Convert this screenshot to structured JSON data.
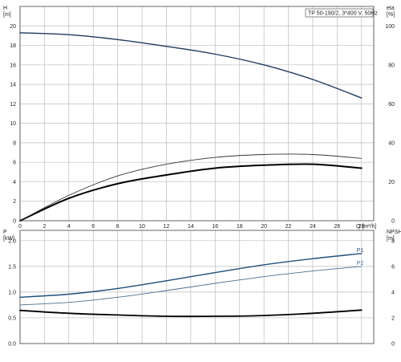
{
  "colors": {
    "grid": "#bdbdbd",
    "frame": "#555555",
    "head": "#1f3b5e",
    "eta": "#000000",
    "eta2": "#333333",
    "p1": "#1f4f7a",
    "p2": "#4a6f90",
    "npsh": "#000000"
  },
  "chart_data": [
    {
      "type": "line",
      "title": "TP 50-190/2, 3*400 V, 50Hz",
      "xlabel": "Q [m³/h]",
      "ylabel_left": [
        "H",
        "[m]"
      ],
      "ylabel_right": [
        "eta",
        "[%]"
      ],
      "xlim": [
        0,
        29
      ],
      "ylim_left": [
        0,
        22
      ],
      "ylim_right": [
        0,
        110
      ],
      "x_ticks": [
        "0",
        "2",
        "4",
        "6",
        "8",
        "10",
        "12",
        "14",
        "16",
        "18",
        "20",
        "22",
        "24",
        "26",
        "28"
      ],
      "y_ticks_left": [
        "0",
        "2",
        "4",
        "6",
        "8",
        "10",
        "12",
        "14",
        "16",
        "18",
        "20"
      ],
      "y_ticks_right": [
        "0",
        "20",
        "40",
        "60",
        "80",
        "100"
      ],
      "grid": true,
      "series": [
        {
          "name": "",
          "axis": "left",
          "x": [
            0,
            4,
            8,
            12,
            16,
            20,
            24,
            28
          ],
          "y": [
            19.3,
            19.1,
            18.6,
            17.9,
            17.1,
            16.0,
            14.5,
            12.6
          ]
        },
        {
          "name": "",
          "axis": "right",
          "x": [
            0,
            4,
            8,
            12,
            16,
            20,
            24,
            28
          ],
          "y": [
            0,
            11.5,
            19,
            23.5,
            27,
            28.5,
            29,
            27
          ]
        },
        {
          "name": "",
          "axis": "right",
          "x": [
            0,
            4,
            8,
            12,
            16,
            20,
            24,
            28
          ],
          "y": [
            0,
            13,
            23,
            29,
            32.5,
            34,
            34,
            32
          ]
        }
      ]
    },
    {
      "type": "line",
      "title": "",
      "xlabel": "",
      "ylabel_left": [
        "P",
        "[kW]"
      ],
      "ylabel_right": [
        "NPSH",
        "[m]"
      ],
      "xlim": [
        0,
        29
      ],
      "ylim_left": [
        0,
        2.2
      ],
      "ylim_right": [
        0,
        8.8
      ],
      "y_ticks_left": [
        "0.0",
        "0.5",
        "1.0",
        "1.5",
        "2.0"
      ],
      "y_ticks_right": [
        "0",
        "2",
        "4",
        "6",
        "8"
      ],
      "grid": true,
      "series": [
        {
          "name": "P1",
          "axis": "left",
          "x": [
            0,
            4,
            8,
            12,
            16,
            20,
            24,
            28
          ],
          "y": [
            0.9,
            0.96,
            1.07,
            1.22,
            1.38,
            1.53,
            1.65,
            1.75
          ]
        },
        {
          "name": "P2",
          "axis": "left",
          "x": [
            0,
            4,
            8,
            12,
            16,
            20,
            24,
            28
          ],
          "y": [
            0.75,
            0.8,
            0.9,
            1.03,
            1.17,
            1.3,
            1.41,
            1.5
          ]
        },
        {
          "name": "",
          "axis": "right",
          "x": [
            0,
            4,
            8,
            12,
            16,
            20,
            24,
            28
          ],
          "y": [
            2.58,
            2.35,
            2.22,
            2.12,
            2.12,
            2.18,
            2.35,
            2.6
          ]
        }
      ]
    }
  ]
}
